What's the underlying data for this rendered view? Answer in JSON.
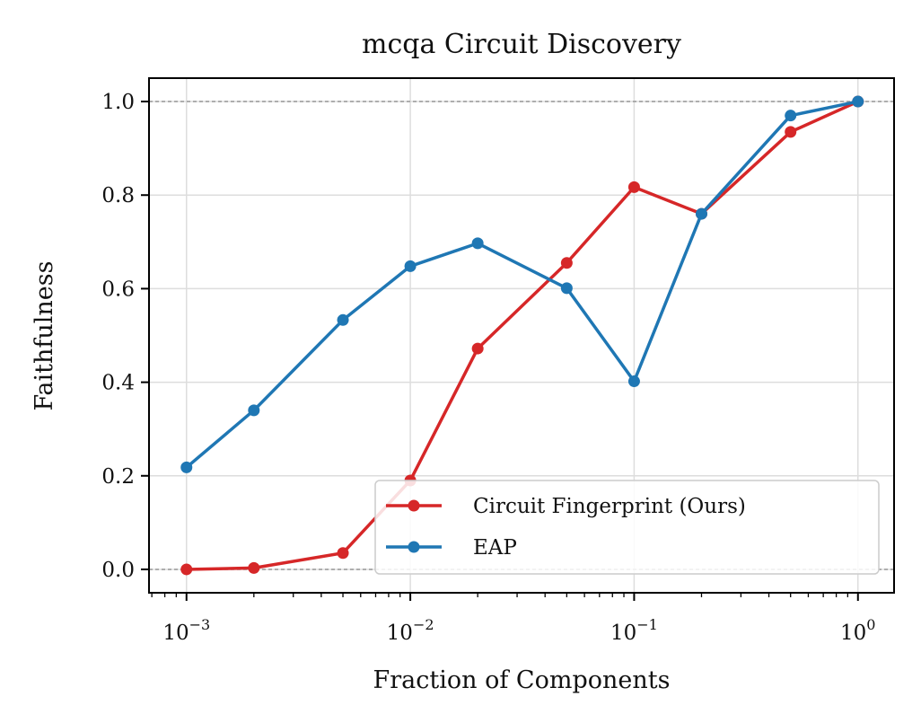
{
  "chart_data": {
    "type": "line",
    "title": "mcqa Circuit Discovery",
    "xlabel": "Fraction of Components",
    "ylabel": "Faithfulness",
    "xscale": "log",
    "xlim": [
      0.00068,
      1.45
    ],
    "ylim": [
      -0.05,
      1.05
    ],
    "x_ticks": [
      {
        "value": 0.001,
        "base": "10",
        "exp": "−3"
      },
      {
        "value": 0.01,
        "base": "10",
        "exp": "−2"
      },
      {
        "value": 0.1,
        "base": "10",
        "exp": "−1"
      },
      {
        "value": 1,
        "base": "10",
        "exp": "0"
      }
    ],
    "y_ticks": [
      {
        "value": 0.0,
        "label": "0.0"
      },
      {
        "value": 0.2,
        "label": "0.2"
      },
      {
        "value": 0.4,
        "label": "0.4"
      },
      {
        "value": 0.6,
        "label": "0.6"
      },
      {
        "value": 0.8,
        "label": "0.8"
      },
      {
        "value": 1.0,
        "label": "1.0"
      }
    ],
    "reference_lines": [
      0.0,
      1.0
    ],
    "grid": true,
    "legend_position": "lower right",
    "x": [
      0.001,
      0.002,
      0.005,
      0.01,
      0.02,
      0.05,
      0.1,
      0.2,
      0.5,
      1.0
    ],
    "series": [
      {
        "name": "Circuit Fingerprint (Ours)",
        "color": "#d62728",
        "values": [
          0.0,
          0.003,
          0.035,
          0.19,
          0.472,
          0.655,
          0.817,
          0.76,
          0.935,
          1.0
        ]
      },
      {
        "name": "EAP",
        "color": "#1f77b4",
        "values": [
          0.218,
          0.34,
          0.533,
          0.648,
          0.697,
          0.601,
          0.402,
          0.76,
          0.97,
          1.0
        ]
      }
    ]
  }
}
